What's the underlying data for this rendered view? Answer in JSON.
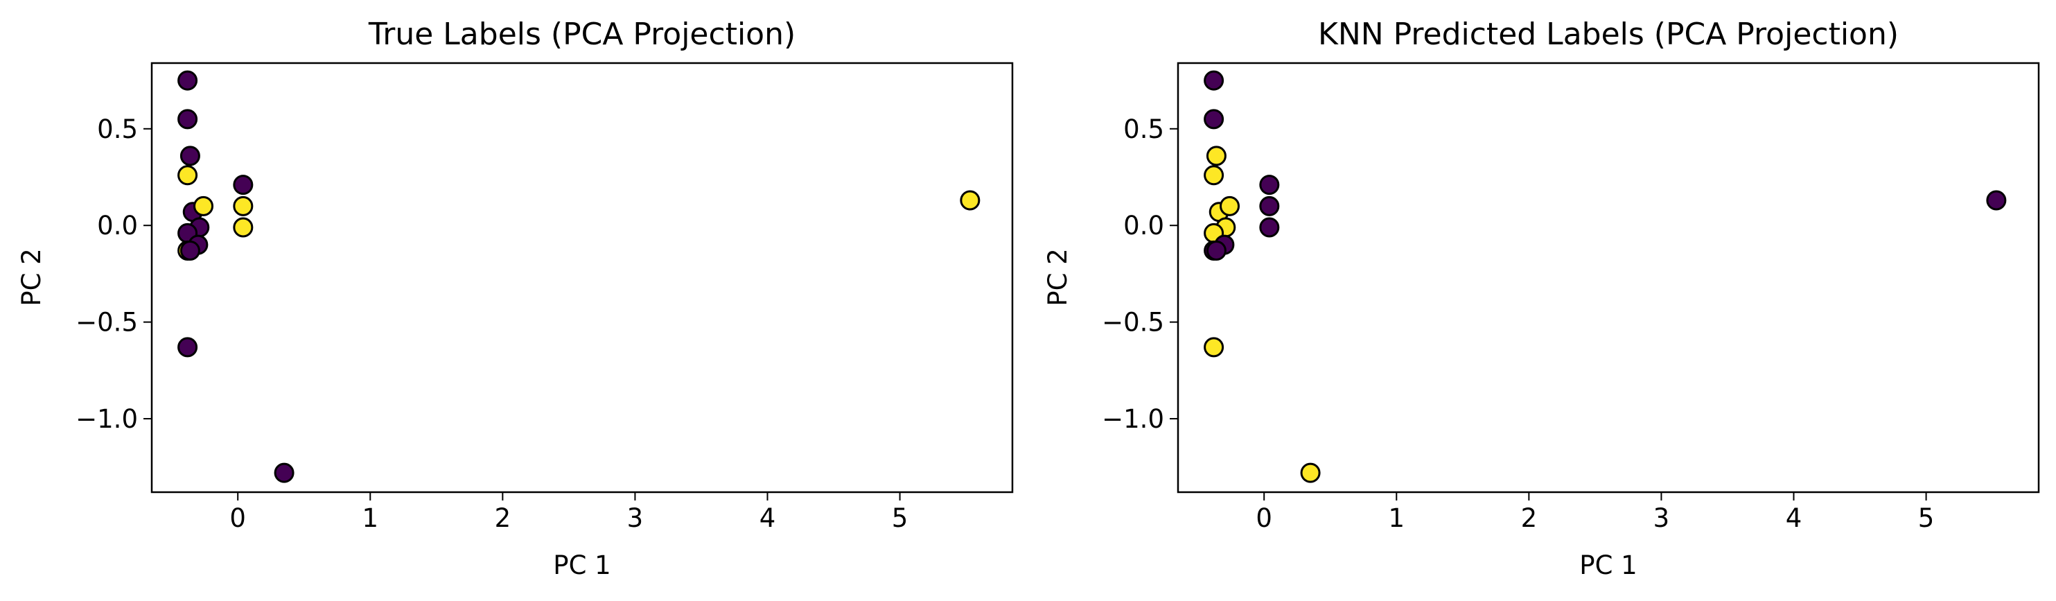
{
  "chart_data": [
    {
      "type": "scatter",
      "title": "True Labels (PCA Projection)",
      "xlabel": "PC 1",
      "ylabel": "PC 2",
      "xlim": [
        -0.65,
        5.85
      ],
      "ylim": [
        -1.38,
        0.84
      ],
      "xticks": [
        0,
        1,
        2,
        3,
        4,
        5
      ],
      "xtick_labels": [
        "0",
        "1",
        "2",
        "3",
        "4",
        "5"
      ],
      "yticks": [
        0.5,
        0.0,
        -0.5,
        -1.0
      ],
      "ytick_labels": [
        "0.5",
        "0.0",
        "−0.5",
        "−1.0"
      ],
      "grid": false,
      "colors": {
        "class_0": "#440154",
        "class_1": "#fde725",
        "edge": "#000000"
      },
      "points": [
        {
          "x": -0.38,
          "y": 0.75,
          "label": 0
        },
        {
          "x": -0.38,
          "y": 0.55,
          "label": 0
        },
        {
          "x": -0.36,
          "y": 0.36,
          "label": 0
        },
        {
          "x": -0.38,
          "y": 0.26,
          "label": 1
        },
        {
          "x": -0.34,
          "y": 0.07,
          "label": 0
        },
        {
          "x": -0.26,
          "y": 0.1,
          "label": 1
        },
        {
          "x": -0.29,
          "y": -0.01,
          "label": 0
        },
        {
          "x": -0.38,
          "y": -0.04,
          "label": 0
        },
        {
          "x": -0.3,
          "y": -0.1,
          "label": 0
        },
        {
          "x": -0.38,
          "y": -0.13,
          "label": 1
        },
        {
          "x": -0.36,
          "y": -0.13,
          "label": 0
        },
        {
          "x": 0.04,
          "y": 0.21,
          "label": 0
        },
        {
          "x": 0.04,
          "y": 0.1,
          "label": 1
        },
        {
          "x": 0.04,
          "y": -0.01,
          "label": 1
        },
        {
          "x": -0.38,
          "y": -0.63,
          "label": 0
        },
        {
          "x": 0.35,
          "y": -1.28,
          "label": 0
        },
        {
          "x": 5.53,
          "y": 0.13,
          "label": 1
        }
      ]
    },
    {
      "type": "scatter",
      "title": "KNN Predicted Labels (PCA Projection)",
      "xlabel": "PC 1",
      "ylabel": "PC 2",
      "xlim": [
        -0.65,
        5.85
      ],
      "ylim": [
        -1.38,
        0.84
      ],
      "xticks": [
        0,
        1,
        2,
        3,
        4,
        5
      ],
      "xtick_labels": [
        "0",
        "1",
        "2",
        "3",
        "4",
        "5"
      ],
      "yticks": [
        0.5,
        0.0,
        -0.5,
        -1.0
      ],
      "ytick_labels": [
        "0.5",
        "0.0",
        "−0.5",
        "−1.0"
      ],
      "grid": false,
      "colors": {
        "class_0": "#440154",
        "class_1": "#fde725",
        "edge": "#000000"
      },
      "points": [
        {
          "x": -0.38,
          "y": 0.75,
          "label": 0
        },
        {
          "x": -0.38,
          "y": 0.55,
          "label": 0
        },
        {
          "x": -0.36,
          "y": 0.36,
          "label": 1
        },
        {
          "x": -0.38,
          "y": 0.26,
          "label": 1
        },
        {
          "x": -0.34,
          "y": 0.07,
          "label": 1
        },
        {
          "x": -0.26,
          "y": 0.1,
          "label": 1
        },
        {
          "x": -0.29,
          "y": -0.01,
          "label": 1
        },
        {
          "x": -0.38,
          "y": -0.04,
          "label": 1
        },
        {
          "x": -0.3,
          "y": -0.1,
          "label": 0
        },
        {
          "x": -0.38,
          "y": -0.13,
          "label": 0
        },
        {
          "x": -0.36,
          "y": -0.13,
          "label": 0
        },
        {
          "x": 0.04,
          "y": 0.21,
          "label": 0
        },
        {
          "x": 0.04,
          "y": 0.1,
          "label": 0
        },
        {
          "x": 0.04,
          "y": -0.01,
          "label": 0
        },
        {
          "x": -0.38,
          "y": -0.63,
          "label": 1
        },
        {
          "x": 0.35,
          "y": -1.28,
          "label": 1
        },
        {
          "x": 5.53,
          "y": 0.13,
          "label": 0
        }
      ]
    }
  ]
}
